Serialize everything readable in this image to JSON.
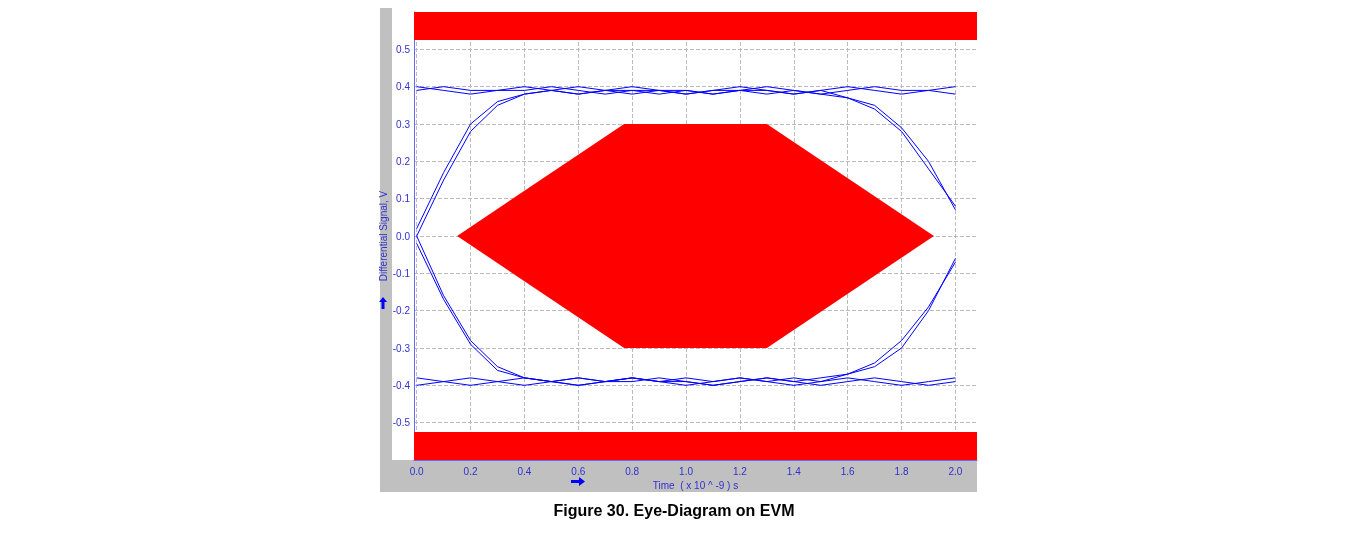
{
  "chart_data": {
    "type": "line",
    "title": "Figure 30. Eye-Diagram on EVM",
    "xlabel": "Time  ( x 10 ^ -9 ) s",
    "ylabel": "Differential Signal, V",
    "x": [
      0,
      0.1,
      0.2,
      0.3,
      0.4,
      0.5,
      0.6,
      0.7,
      0.8,
      0.9,
      1.0,
      1.1,
      1.2,
      1.3,
      1.4,
      1.5,
      1.6,
      1.7,
      1.8,
      1.9,
      2.0
    ],
    "series": [
      {
        "color": "#0000ff",
        "values": [
          0.39,
          0.4,
          0.39,
          0.39,
          0.4,
          0.39,
          0.38,
          0.39,
          0.4,
          0.39,
          0.38,
          0.39,
          0.39,
          0.4,
          0.39,
          0.38,
          0.39,
          0.4,
          0.39,
          0.39,
          0.38
        ]
      },
      {
        "color": "#0000ff",
        "values": [
          -0.38,
          -0.39,
          -0.4,
          -0.39,
          -0.38,
          -0.39,
          -0.4,
          -0.39,
          -0.38,
          -0.39,
          -0.39,
          -0.4,
          -0.39,
          -0.38,
          -0.39,
          -0.4,
          -0.39,
          -0.38,
          -0.39,
          -0.4,
          -0.39
        ]
      },
      {
        "color": "#0000ff",
        "values": [
          0,
          0.15,
          0.28,
          0.35,
          0.38,
          0.39,
          0.38,
          0.39,
          0.39,
          0.38,
          0.39,
          0.38,
          0.39,
          0.38,
          0.39,
          0.38,
          0.37,
          0.35,
          0.29,
          0.2,
          0.07
        ]
      },
      {
        "color": "#0000ff",
        "values": [
          0,
          -0.16,
          -0.28,
          -0.35,
          -0.38,
          -0.39,
          -0.38,
          -0.39,
          -0.38,
          -0.39,
          -0.38,
          -0.39,
          -0.38,
          -0.39,
          -0.38,
          -0.39,
          -0.37,
          -0.35,
          -0.3,
          -0.2,
          -0.06
        ]
      },
      {
        "color": "#0000ff",
        "values": [
          0.4,
          0.39,
          0.38,
          0.39,
          0.39,
          0.4,
          0.39,
          0.38,
          0.39,
          0.39,
          0.38,
          0.39,
          0.4,
          0.39,
          0.38,
          0.39,
          0.37,
          0.34,
          0.28,
          0.18,
          0.08
        ]
      },
      {
        "color": "#0000ff",
        "values": [
          0.02,
          0.17,
          0.3,
          0.36,
          0.38,
          0.39,
          0.4,
          0.39,
          0.38,
          0.39,
          0.39,
          0.38,
          0.39,
          0.39,
          0.38,
          0.39,
          0.4,
          0.39,
          0.38,
          0.39,
          0.4
        ]
      },
      {
        "color": "#0000ff",
        "values": [
          -0.4,
          -0.39,
          -0.38,
          -0.39,
          -0.4,
          -0.39,
          -0.38,
          -0.39,
          -0.39,
          -0.38,
          -0.39,
          -0.4,
          -0.39,
          -0.38,
          -0.39,
          -0.38,
          -0.37,
          -0.34,
          -0.28,
          -0.19,
          -0.07
        ]
      },
      {
        "color": "#0000ff",
        "values": [
          -0.02,
          -0.17,
          -0.29,
          -0.36,
          -0.38,
          -0.39,
          -0.4,
          -0.39,
          -0.38,
          -0.39,
          -0.4,
          -0.39,
          -0.38,
          -0.39,
          -0.4,
          -0.39,
          -0.38,
          -0.39,
          -0.4,
          -0.39,
          -0.38
        ]
      },
      {
        "type": "area",
        "color": "#ff0000",
        "x": [
          0.15,
          0.77,
          1.3,
          1.92,
          1.3,
          0.77
        ],
        "values": [
          0,
          0.3,
          0.3,
          0,
          -0.3,
          -0.3
        ]
      }
    ],
    "bands": [
      {
        "axis": "y",
        "from": 0.525,
        "to": 0.6,
        "color": "#ff0000"
      },
      {
        "axis": "y",
        "from": -0.6,
        "to": -0.525,
        "color": "#ff0000"
      }
    ],
    "xlim": [
      -0.01,
      2.08
    ],
    "xticks": [
      {
        "value": 0,
        "label": "0.0"
      },
      0.2,
      0.4,
      0.6,
      0.8,
      {
        "value": 1,
        "label": "1.0"
      },
      1.2,
      1.4,
      1.6,
      1.8,
      {
        "value": 2,
        "label": "2.0"
      }
    ],
    "ylim": [
      -0.6,
      0.6
    ],
    "yticks": [
      -0.5,
      -0.4,
      -0.3,
      -0.2,
      -0.1,
      {
        "value": 0,
        "label": "0.0"
      },
      0.1,
      0.2,
      0.3,
      0.4,
      0.5
    ],
    "grid": true
  }
}
